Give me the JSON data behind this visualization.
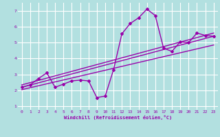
{
  "title": "",
  "xlabel": "Windchill (Refroidissement éolien,°C)",
  "background_color": "#b2e0e0",
  "grid_color": "#ffffff",
  "line_color": "#9900aa",
  "xlim": [
    -0.5,
    23.5
  ],
  "ylim": [
    0.8,
    7.5
  ],
  "xticks": [
    0,
    1,
    2,
    3,
    4,
    5,
    6,
    7,
    8,
    9,
    10,
    11,
    12,
    13,
    14,
    15,
    16,
    17,
    18,
    19,
    20,
    21,
    22,
    23
  ],
  "yticks": [
    1,
    2,
    3,
    4,
    5,
    6,
    7
  ],
  "curve1_x": [
    0,
    1,
    2,
    3,
    4,
    5,
    6,
    7,
    8,
    9,
    10,
    11,
    12,
    13,
    14,
    15,
    16,
    17,
    18,
    19,
    20,
    21,
    22,
    23
  ],
  "curve1_y": [
    2.2,
    2.35,
    2.75,
    3.1,
    2.2,
    2.4,
    2.6,
    2.65,
    2.6,
    1.55,
    1.65,
    3.3,
    5.55,
    6.2,
    6.55,
    7.1,
    6.7,
    4.65,
    4.45,
    5.05,
    5.0,
    5.6,
    5.45,
    5.4
  ],
  "trend1_x": [
    0,
    23
  ],
  "trend1_y": [
    2.2,
    5.4
  ],
  "trend2_x": [
    0,
    23
  ],
  "trend2_y": [
    2.05,
    4.85
  ],
  "trend3_x": [
    0,
    23
  ],
  "trend3_y": [
    2.35,
    5.6
  ]
}
